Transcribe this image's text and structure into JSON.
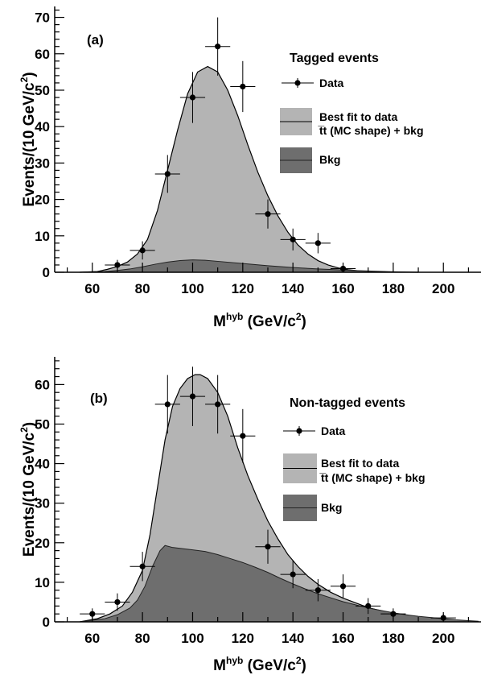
{
  "chart_data": [
    {
      "type": "area",
      "panel": "(a)",
      "legend_title": "Tagged events",
      "xlabel": {
        "main": "M",
        "sup": "hyb",
        "unit_pre": " (GeV/c",
        "unit_sup": "2",
        "unit_post": ")"
      },
      "ylabel": {
        "main": "Events/(10 GeV/c",
        "sup": "2",
        "post": ")"
      },
      "xlim": [
        45,
        215
      ],
      "ylim": [
        0,
        73
      ],
      "xticks": [
        60,
        80,
        100,
        120,
        140,
        160,
        180,
        200
      ],
      "yticks": [
        0,
        10,
        20,
        30,
        40,
        50,
        60,
        70
      ],
      "legend": {
        "data_label": "Data",
        "fit_label_line1": "Best fit to data",
        "fit_label_line2": "t̅t (MC shape) + bkg",
        "bkg_label": "Bkg"
      },
      "fill_colors": {
        "fit": "#b4b4b4",
        "bkg": "#6e6e6e"
      },
      "data_points": [
        {
          "x": 70,
          "y": 2,
          "yerr": 1.4
        },
        {
          "x": 80,
          "y": 6,
          "yerr": 2.5
        },
        {
          "x": 90,
          "y": 27,
          "yerr": 5.2
        },
        {
          "x": 100,
          "y": 48,
          "yerr": 7
        },
        {
          "x": 110,
          "y": 62,
          "yerr": 8
        },
        {
          "x": 120,
          "y": 51,
          "yerr": 7
        },
        {
          "x": 130,
          "y": 16,
          "yerr": 4
        },
        {
          "x": 140,
          "y": 9,
          "yerr": 3
        },
        {
          "x": 150,
          "y": 8,
          "yerr": 2.8
        },
        {
          "x": 160,
          "y": 1,
          "yerr": 1
        }
      ],
      "fit_curve": {
        "x": [
          55,
          62,
          66,
          70,
          74,
          78,
          82,
          86,
          90,
          94,
          98,
          102,
          106,
          110,
          114,
          118,
          122,
          126,
          130,
          134,
          138,
          142,
          146,
          150,
          154,
          158,
          162,
          166,
          170,
          174,
          178,
          182,
          186,
          190
        ],
        "y": [
          0,
          0.2,
          0.8,
          1.6,
          2.8,
          5,
          9,
          17,
          28,
          39,
          49,
          55,
          56.5,
          55,
          50,
          43,
          35,
          27.5,
          21,
          15.5,
          11,
          7.5,
          5,
          3.2,
          2,
          1.2,
          0.7,
          0.4,
          0.2,
          0.1,
          0.05,
          0.02,
          0.01,
          0
        ]
      },
      "bkg_curve": {
        "x": [
          55,
          65,
          70,
          75,
          80,
          85,
          90,
          95,
          100,
          105,
          110,
          120,
          130,
          140,
          150,
          160,
          170,
          180,
          190
        ],
        "y": [
          0,
          0.2,
          0.5,
          0.9,
          1.5,
          2.2,
          2.8,
          3.2,
          3.4,
          3.3,
          3,
          2.4,
          1.8,
          1.3,
          0.9,
          0.6,
          0.35,
          0.15,
          0
        ]
      }
    },
    {
      "type": "area",
      "panel": "(b)",
      "legend_title": "Non-tagged events",
      "xlabel": {
        "main": "M",
        "sup": "hyb",
        "unit_pre": " (GeV/c",
        "unit_sup": "2",
        "unit_post": ")"
      },
      "ylabel": {
        "main": "Events/(10 GeV/c",
        "sup": "2",
        "post": ")"
      },
      "xlim": [
        45,
        215
      ],
      "ylim": [
        0,
        67
      ],
      "xticks": [
        60,
        80,
        100,
        120,
        140,
        160,
        180,
        200
      ],
      "yticks": [
        0,
        10,
        20,
        30,
        40,
        50,
        60
      ],
      "legend": {
        "data_label": "Data",
        "fit_label_line1": "Best fit to data",
        "fit_label_line2": "t̅t (MC shape) + bkg",
        "bkg_label": "Bkg"
      },
      "fill_colors": {
        "fit": "#b4b4b4",
        "bkg": "#6e6e6e"
      },
      "data_points": [
        {
          "x": 60,
          "y": 2,
          "yerr": 1.4
        },
        {
          "x": 70,
          "y": 5,
          "yerr": 2.2
        },
        {
          "x": 80,
          "y": 14,
          "yerr": 3.7
        },
        {
          "x": 90,
          "y": 55,
          "yerr": 7.4
        },
        {
          "x": 100,
          "y": 57,
          "yerr": 7.5
        },
        {
          "x": 110,
          "y": 55,
          "yerr": 7.4
        },
        {
          "x": 120,
          "y": 47,
          "yerr": 6.8
        },
        {
          "x": 130,
          "y": 19,
          "yerr": 4.3
        },
        {
          "x": 140,
          "y": 12,
          "yerr": 3.5
        },
        {
          "x": 150,
          "y": 8,
          "yerr": 2.8
        },
        {
          "x": 160,
          "y": 9,
          "yerr": 3
        },
        {
          "x": 170,
          "y": 4,
          "yerr": 2
        },
        {
          "x": 180,
          "y": 2,
          "yerr": 1.4
        },
        {
          "x": 200,
          "y": 1,
          "yerr": 1
        }
      ],
      "fit_curve": {
        "x": [
          55,
          62,
          67,
          72,
          76,
          80,
          83,
          86,
          89,
          92,
          95,
          98,
          101,
          103,
          106,
          110,
          114,
          118,
          122,
          126,
          130,
          134,
          138,
          142,
          146,
          150,
          155,
          160,
          165,
          170,
          175,
          180,
          185,
          190,
          195,
          200,
          205,
          210,
          214
        ],
        "y": [
          0,
          0.8,
          2,
          4,
          7.5,
          13,
          22,
          34,
          46,
          54.5,
          59,
          61.5,
          62.5,
          62.5,
          61.5,
          58,
          52,
          44,
          37,
          31,
          25.5,
          21,
          17,
          14,
          11.5,
          9.5,
          7.5,
          6,
          4.8,
          3.6,
          2.8,
          2,
          1.5,
          1.1,
          0.8,
          0.5,
          0.3,
          0.15,
          0.05
        ]
      },
      "bkg_curve": {
        "x": [
          55,
          65,
          70,
          75,
          78,
          81,
          84,
          87,
          89,
          92,
          96,
          100,
          105,
          110,
          115,
          120,
          125,
          130,
          135,
          140,
          145,
          150,
          155,
          160,
          165,
          170,
          175,
          180,
          185,
          190,
          195,
          200,
          205,
          210,
          214
        ],
        "y": [
          0,
          0.8,
          1.8,
          3.5,
          5.5,
          9,
          14,
          18,
          19.3,
          18.8,
          18.5,
          18.2,
          17.8,
          17,
          16,
          15,
          13.8,
          12.5,
          11,
          9.6,
          8.3,
          7.1,
          6.1,
          5.1,
          4.3,
          3.5,
          2.9,
          2.3,
          1.8,
          1.4,
          1.1,
          0.8,
          0.5,
          0.3,
          0.15
        ]
      }
    }
  ]
}
